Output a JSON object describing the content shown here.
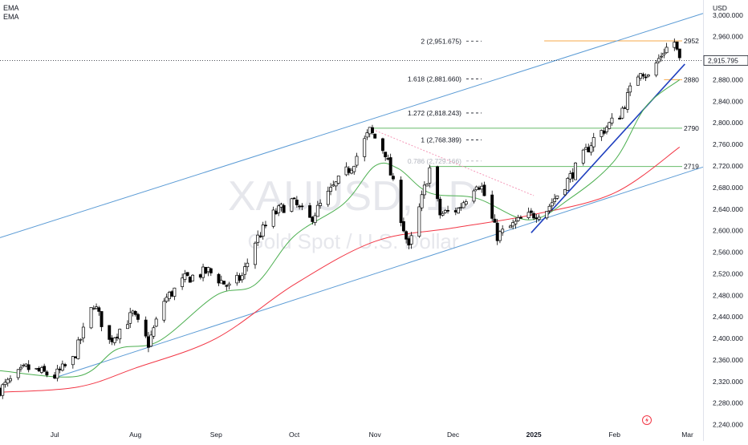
{
  "legend": {
    "items": [
      "EMA",
      "EMA"
    ]
  },
  "watermark": {
    "symbol": "XAUUSD, 1D",
    "description": "Gold Spot / U.S. Dollar"
  },
  "price_axis": {
    "currency": "USD",
    "last_price": "2,915.795",
    "ticks": [
      "3,000.000",
      "2,960.000",
      "2,920.000",
      "2,880.000",
      "2,840.000",
      "2,800.000",
      "2,760.000",
      "2,720.000",
      "2,680.000",
      "2,640.000",
      "2,600.000",
      "2,560.000",
      "2,520.000",
      "2,480.000",
      "2,440.000",
      "2,400.000",
      "2,360.000",
      "2,320.000",
      "2,280.000",
      "2,240.000"
    ]
  },
  "time_axis": {
    "ticks": [
      "Jul",
      "Aug",
      "Sep",
      "Oct",
      "Nov",
      "Dec",
      "2025",
      "Feb",
      "Mar"
    ]
  },
  "fibonacci": [
    {
      "label": "2 (2,951.675)",
      "price": 2951.675
    },
    {
      "label": "1.618 (2,881.660)",
      "price": 2881.66
    },
    {
      "label": "1.272 (2,818.243)",
      "price": 2818.243
    },
    {
      "label": "1 (2,768.389)",
      "price": 2768.389
    },
    {
      "label": "0.786 (2,729.166)",
      "price": 2729.166
    }
  ],
  "horizontal_levels": [
    {
      "label": "2952",
      "price": 2952,
      "color": "#f7a84a"
    },
    {
      "label": "2880",
      "price": 2880,
      "color": "#f7a84a"
    },
    {
      "label": "2790",
      "price": 2790,
      "color": "#66bb6a"
    },
    {
      "label": "2719",
      "price": 2719,
      "color": "#66bb6a"
    }
  ],
  "colors": {
    "up": "#ffffff",
    "down": "#000000",
    "candle_border": "#000000",
    "ema_fast": "#4caf50",
    "ema_slow": "#f23645",
    "channel": "#5b9bd5",
    "trendline": "#1f3fbf",
    "fib_dots": "#f48fb1",
    "orange_level": "#f7a84a",
    "green_level": "#66bb6a"
  },
  "chart_data": {
    "type": "candlestick",
    "symbol": "XAUUSD, 1D",
    "description": "Gold Spot / U.S. Dollar",
    "y_range": [
      2232,
      3019
    ],
    "x_range": [
      "2024-06-10",
      "2025-03-07"
    ],
    "close_points": [
      [
        "2024-06-10",
        2305
      ],
      [
        "2024-06-20",
        2345
      ],
      [
        "2024-07-01",
        2330
      ],
      [
        "2024-07-08",
        2360
      ],
      [
        "2024-07-16",
        2465
      ],
      [
        "2024-07-22",
        2395
      ],
      [
        "2024-07-31",
        2445
      ],
      [
        "2024-08-06",
        2390
      ],
      [
        "2024-08-12",
        2470
      ],
      [
        "2024-08-20",
        2510
      ],
      [
        "2024-08-29",
        2525
      ],
      [
        "2024-09-06",
        2495
      ],
      [
        "2024-09-11",
        2515
      ],
      [
        "2024-09-16",
        2580
      ],
      [
        "2024-09-23",
        2630
      ],
      [
        "2024-09-30",
        2655
      ],
      [
        "2024-10-07",
        2620
      ],
      [
        "2024-10-16",
        2680
      ],
      [
        "2024-10-23",
        2720
      ],
      [
        "2024-10-30",
        2785
      ],
      [
        "2024-11-05",
        2745
      ],
      [
        "2024-11-08",
        2685
      ],
      [
        "2024-11-14",
        2565
      ],
      [
        "2024-11-22",
        2715
      ],
      [
        "2024-11-26",
        2630
      ],
      [
        "2024-12-03",
        2640
      ],
      [
        "2024-12-10",
        2690
      ],
      [
        "2024-12-12",
        2680
      ],
      [
        "2024-12-18",
        2590
      ],
      [
        "2024-12-27",
        2620
      ],
      [
        "2025-01-06",
        2640
      ],
      [
        "2025-01-15",
        2700
      ],
      [
        "2025-01-24",
        2770
      ],
      [
        "2025-02-03",
        2815
      ],
      [
        "2025-02-07",
        2860
      ],
      [
        "2025-02-11",
        2900
      ],
      [
        "2025-02-14",
        2885
      ],
      [
        "2025-02-20",
        2935
      ],
      [
        "2025-02-24",
        2950
      ],
      [
        "2025-02-26",
        2915
      ]
    ],
    "ema_fast": [
      [
        "2024-06-10",
        2340
      ],
      [
        "2024-07-10",
        2330
      ],
      [
        "2024-07-25",
        2380
      ],
      [
        "2024-08-10",
        2395
      ],
      [
        "2024-09-01",
        2480
      ],
      [
        "2024-09-16",
        2500
      ],
      [
        "2024-10-01",
        2590
      ],
      [
        "2024-10-20",
        2650
      ],
      [
        "2024-11-01",
        2720
      ],
      [
        "2024-11-10",
        2715
      ],
      [
        "2024-11-22",
        2670
      ],
      [
        "2024-12-10",
        2660
      ],
      [
        "2024-12-30",
        2620
      ],
      [
        "2025-01-15",
        2660
      ],
      [
        "2025-02-01",
        2730
      ],
      [
        "2025-02-13",
        2830
      ],
      [
        "2025-02-26",
        2880
      ]
    ],
    "ema_slow": [
      [
        "2024-06-10",
        2300
      ],
      [
        "2024-07-10",
        2310
      ],
      [
        "2024-08-01",
        2345
      ],
      [
        "2024-09-01",
        2400
      ],
      [
        "2024-10-01",
        2500
      ],
      [
        "2024-11-01",
        2580
      ],
      [
        "2024-12-01",
        2605
      ],
      [
        "2025-01-01",
        2630
      ],
      [
        "2025-02-01",
        2670
      ],
      [
        "2025-02-26",
        2755
      ]
    ],
    "channel": {
      "upper": [
        [
          "2024-06-10",
          2587
        ],
        [
          "2025-03-07",
          3003
        ]
      ],
      "lower": [
        [
          "2024-07-01",
          2327
        ],
        [
          "2025-03-07",
          2718
        ]
      ]
    },
    "trendline": [
      [
        "2024-12-31",
        2596
      ],
      [
        "2025-02-28",
        2909
      ]
    ],
    "fib_source_line": [
      [
        "2024-10-30",
        2790
      ],
      [
        "2025-01-01",
        2665
      ]
    ]
  }
}
